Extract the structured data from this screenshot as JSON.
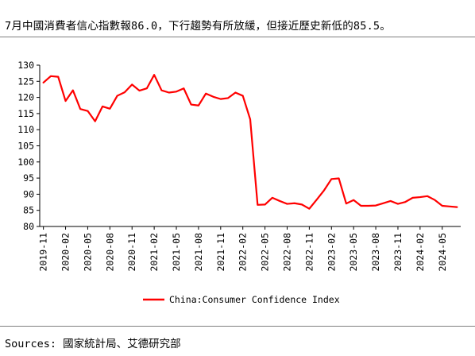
{
  "header": {
    "title": "7月中國消費者信心指數報86.0，下行趨勢有所放緩，但接近歷史新低的85.5。"
  },
  "footer": {
    "source": "Sources: 國家統計局、艾德研究部"
  },
  "colors": {
    "series": "#ff0000",
    "axis": "#000000",
    "rule": "#7f7f7f"
  },
  "chart_data": {
    "type": "line",
    "title": "",
    "xlabel": "",
    "ylabel": "",
    "ylim": [
      80,
      130
    ],
    "yticks": [
      "80",
      "85",
      "90",
      "95",
      "100",
      "105",
      "110",
      "115",
      "120",
      "125",
      "130"
    ],
    "grid": false,
    "legend_position": "bottom-center",
    "x": [
      "2019-11",
      "2019-12",
      "2020-01",
      "2020-02",
      "2020-03",
      "2020-04",
      "2020-05",
      "2020-06",
      "2020-07",
      "2020-08",
      "2020-09",
      "2020-10",
      "2020-11",
      "2020-12",
      "2021-01",
      "2021-02",
      "2021-03",
      "2021-04",
      "2021-05",
      "2021-06",
      "2021-07",
      "2021-08",
      "2021-09",
      "2021-10",
      "2021-11",
      "2021-12",
      "2022-01",
      "2022-02",
      "2022-03",
      "2022-04",
      "2022-05",
      "2022-06",
      "2022-07",
      "2022-08",
      "2022-09",
      "2022-10",
      "2022-11",
      "2022-12",
      "2023-01",
      "2023-02",
      "2023-03",
      "2023-04",
      "2023-05",
      "2023-06",
      "2023-07",
      "2023-08",
      "2023-09",
      "2023-10",
      "2023-11",
      "2023-12",
      "2024-01",
      "2024-02",
      "2024-03",
      "2024-04",
      "2024-05",
      "2024-06",
      "2024-07"
    ],
    "xtick_labels": [
      "2019-11",
      "2020-02",
      "2020-05",
      "2020-08",
      "2020-11",
      "2021-02",
      "2021-05",
      "2021-08",
      "2021-11",
      "2022-02",
      "2022-05",
      "2022-08",
      "2022-11",
      "2023-02",
      "2023-05",
      "2023-08",
      "2023-11",
      "2024-02",
      "2024-05"
    ],
    "series": [
      {
        "name": "China:Consumer Confidence Index",
        "values": [
          124.6,
          126.6,
          126.4,
          118.9,
          122.2,
          116.4,
          115.8,
          112.6,
          117.2,
          116.5,
          120.5,
          121.6,
          124.0,
          122.1,
          122.8,
          127.0,
          122.2,
          121.5,
          121.8,
          122.8,
          117.8,
          117.5,
          121.2,
          120.2,
          119.5,
          119.8,
          121.5,
          120.5,
          113.2,
          86.7,
          86.8,
          88.9,
          87.9,
          87.0,
          87.2,
          86.8,
          85.5,
          88.3,
          91.2,
          94.7,
          94.9,
          87.1,
          88.2,
          86.4,
          86.4,
          86.5,
          87.2,
          87.9,
          87.0,
          87.6,
          88.9,
          89.1,
          89.4,
          88.2,
          86.4,
          86.2,
          86.0
        ]
      }
    ]
  }
}
